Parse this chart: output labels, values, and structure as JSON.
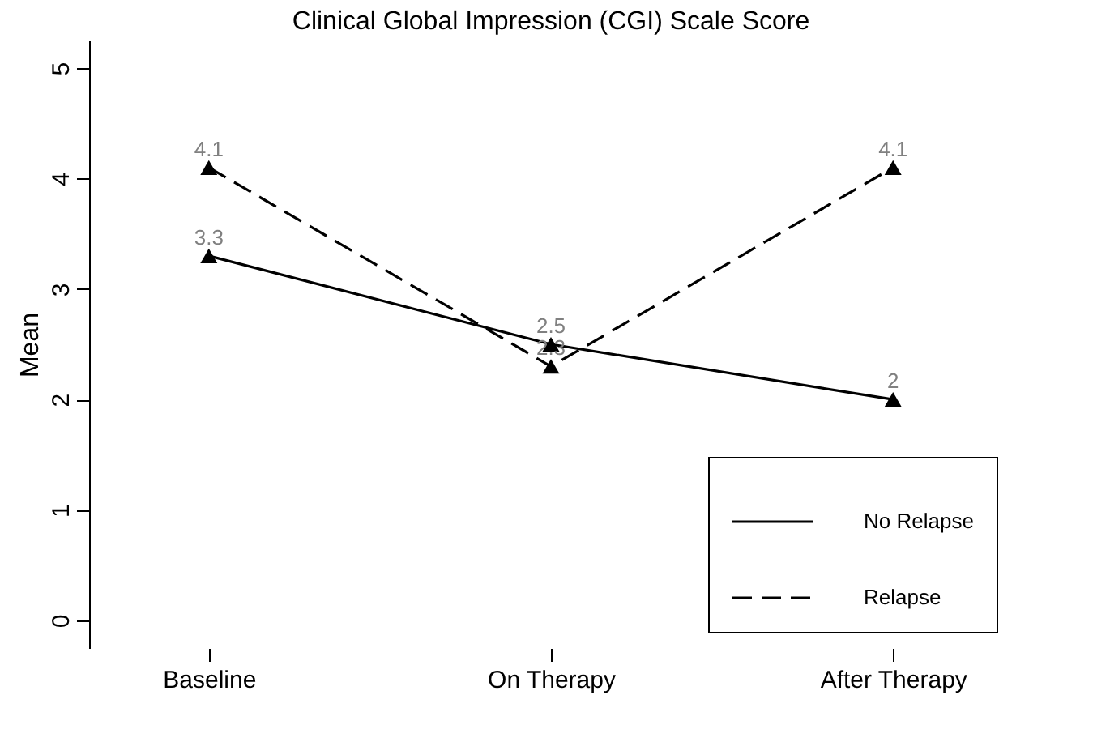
{
  "chart_data": {
    "type": "line",
    "title": "Clinical Global Impression (CGI) Scale Score",
    "ylabel": "Mean",
    "categories": [
      "Baseline",
      "On Therapy",
      "After Therapy"
    ],
    "ylim": [
      -0.25,
      5.25
    ],
    "yticks": [
      0,
      1,
      2,
      3,
      4,
      5
    ],
    "series": [
      {
        "name": "No Relapse",
        "color": "#000000",
        "line_style": "solid",
        "values": [
          3.3,
          2.5,
          2
        ]
      },
      {
        "name": "Relapse",
        "color": "#000000",
        "line_style": "dashed",
        "values": [
          4.1,
          2.3,
          4.1
        ]
      }
    ],
    "marker": "triangle",
    "data_labels": true,
    "grid": false,
    "legend": "bottom right"
  }
}
